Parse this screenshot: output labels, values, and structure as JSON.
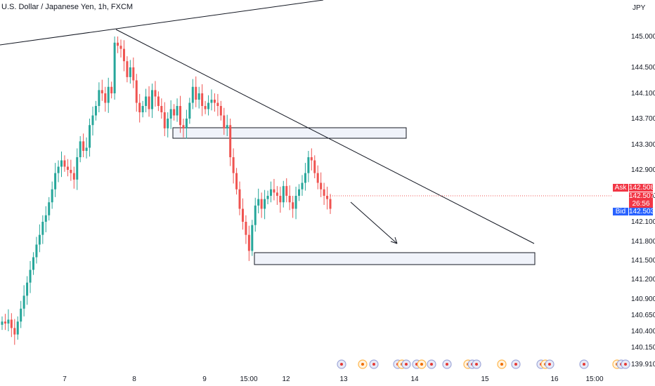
{
  "header": {
    "title": "U.S. Dollar / Japanese Yen, 1h, FXCM",
    "currency": "JPY"
  },
  "price_panel": {
    "ask_label": "Ask",
    "ask_value": "142.508",
    "last_value": "142.507",
    "countdown": "26:56",
    "bid_label": "Bid",
    "bid_value": "142.503"
  },
  "colors": {
    "up": "#26a69a",
    "down": "#ef5350",
    "accent_red": "#f23645",
    "bid_blue": "#2962ff",
    "line": "#131722"
  },
  "chart_data": {
    "type": "candlestick",
    "symbol": "USDJPY",
    "timeframe": "1h",
    "y_ticks": [
      "145.000",
      "144.500",
      "144.100",
      "143.700",
      "143.300",
      "142.900",
      "142.500",
      "142.100",
      "141.800",
      "141.500",
      "141.200",
      "140.900",
      "140.650",
      "140.400",
      "140.150",
      "139.910"
    ],
    "x_ticks": [
      "7",
      "8",
      "9",
      "15:00",
      "12",
      "13",
      "14",
      "15",
      "16",
      "15:00"
    ],
    "close_series": [
      140.55,
      140.52,
      140.58,
      140.45,
      140.35,
      140.55,
      140.75,
      140.95,
      141.15,
      141.35,
      141.55,
      141.75,
      141.9,
      142.1,
      142.2,
      142.4,
      142.6,
      142.85,
      142.95,
      143.05,
      142.95,
      142.9,
      142.85,
      142.75,
      143.1,
      143.35,
      143.2,
      143.25,
      143.6,
      143.75,
      143.9,
      144.15,
      144.1,
      143.95,
      144.2,
      144.1,
      144.9,
      144.85,
      144.8,
      144.6,
      144.35,
      144.5,
      144.3,
      143.95,
      143.8,
      143.9,
      144.05,
      143.85,
      144.15,
      144.05,
      143.9,
      143.8,
      143.55,
      143.7,
      143.85,
      143.75,
      143.9,
      143.6,
      143.55,
      143.7,
      143.95,
      144.2,
      144.0,
      144.1,
      143.9,
      143.85,
      143.95,
      144.0,
      143.95,
      143.9,
      143.75,
      143.55,
      143.6,
      143.1,
      142.85,
      142.6,
      142.3,
      142.1,
      141.9,
      141.65,
      142.05,
      142.35,
      142.45,
      142.3,
      142.45,
      142.5,
      142.6,
      142.55,
      142.5,
      142.4,
      142.65,
      142.5,
      142.4,
      142.3,
      142.5,
      142.6,
      142.7,
      142.85,
      143.1,
      143.05,
      142.85,
      142.7,
      142.6,
      142.5,
      142.45,
      142.3
    ]
  }
}
